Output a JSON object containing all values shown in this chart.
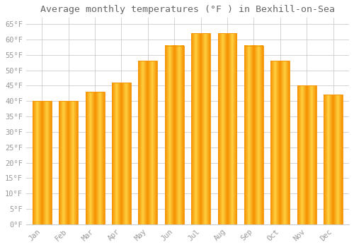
{
  "title": "Average monthly temperatures (°F ) in Bexhill-on-Sea",
  "months": [
    "Jan",
    "Feb",
    "Mar",
    "Apr",
    "May",
    "Jun",
    "Jul",
    "Aug",
    "Sep",
    "Oct",
    "Nov",
    "Dec"
  ],
  "values": [
    40,
    40,
    43,
    46,
    53,
    58,
    62,
    62,
    58,
    53,
    45,
    42
  ],
  "bar_color_center": "#FFD040",
  "bar_color_edge": "#F59000",
  "background_color": "#FFFFFF",
  "grid_color": "#CCCCCC",
  "title_color": "#666666",
  "label_color": "#999999",
  "ylim": [
    0,
    67
  ],
  "yticks": [
    0,
    5,
    10,
    15,
    20,
    25,
    30,
    35,
    40,
    45,
    50,
    55,
    60,
    65
  ],
  "ytick_labels": [
    "0°F",
    "5°F",
    "10°F",
    "15°F",
    "20°F",
    "25°F",
    "30°F",
    "35°F",
    "40°F",
    "45°F",
    "50°F",
    "55°F",
    "60°F",
    "65°F"
  ],
  "title_fontsize": 9.5,
  "tick_fontsize": 7.5,
  "font_family": "monospace"
}
